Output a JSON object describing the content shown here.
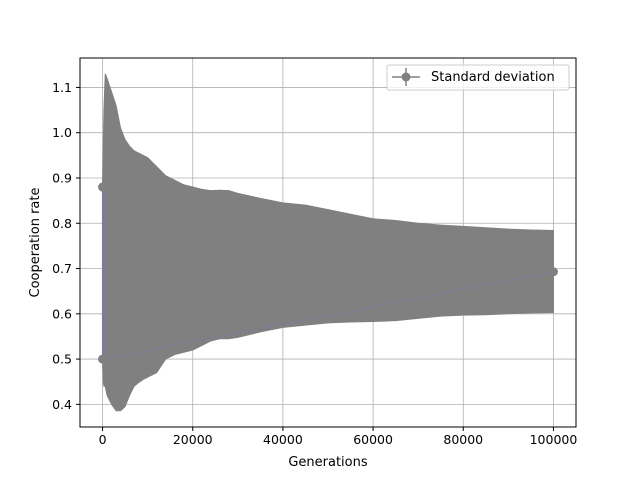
{
  "chart_data": {
    "type": "line",
    "title": "",
    "xlabel": "Generations",
    "ylabel": "Cooperation rate",
    "xlim": [
      -5000,
      105000
    ],
    "ylim": [
      0.35,
      1.165
    ],
    "xticks": [
      0,
      20000,
      40000,
      60000,
      80000,
      100000
    ],
    "xtick_labels": [
      "0",
      "20000",
      "40000",
      "60000",
      "80000",
      "100000"
    ],
    "yticks": [
      0.4,
      0.5,
      0.6,
      0.7,
      0.8,
      0.9,
      1.0,
      1.1
    ],
    "ytick_labels": [
      "0.4",
      "0.5",
      "0.6",
      "0.7",
      "0.8",
      "0.9",
      "1.0",
      "1.1"
    ],
    "grid": true,
    "legend": {
      "position": "top-right",
      "entries": [
        "Standard deviation"
      ]
    },
    "colors": {
      "errorbar": "#808080",
      "mean_line": "#7777aa",
      "grid": "#b0b0b0"
    },
    "series": [
      {
        "name": "Standard deviation",
        "x": [
          0,
          100000
        ],
        "y": [
          0.5,
          0.693
        ],
        "y_upper_label_point": 0.88
      }
    ],
    "error_band": {
      "x": [
        0,
        150,
        300,
        600,
        1000,
        2000,
        3000,
        4000,
        5000,
        6000,
        7000,
        8000,
        9000,
        10000,
        12000,
        14000,
        16000,
        18000,
        20000,
        22000,
        24000,
        26000,
        28000,
        30000,
        35000,
        40000,
        45000,
        50000,
        55000,
        60000,
        65000,
        70000,
        75000,
        80000,
        85000,
        90000,
        95000,
        100000
      ],
      "upper": [
        0.88,
        0.96,
        1.05,
        1.13,
        1.12,
        1.09,
        1.06,
        1.01,
        0.985,
        0.97,
        0.96,
        0.955,
        0.95,
        0.945,
        0.925,
        0.905,
        0.895,
        0.885,
        0.88,
        0.875,
        0.872,
        0.873,
        0.872,
        0.866,
        0.855,
        0.845,
        0.84,
        0.83,
        0.82,
        0.81,
        0.806,
        0.8,
        0.796,
        0.793,
        0.79,
        0.787,
        0.785,
        0.784
      ],
      "lower": [
        0.5,
        0.45,
        0.44,
        0.44,
        0.42,
        0.4,
        0.386,
        0.386,
        0.395,
        0.42,
        0.44,
        0.448,
        0.455,
        0.46,
        0.47,
        0.5,
        0.51,
        0.515,
        0.52,
        0.53,
        0.54,
        0.545,
        0.545,
        0.548,
        0.56,
        0.57,
        0.575,
        0.58,
        0.582,
        0.583,
        0.585,
        0.59,
        0.595,
        0.597,
        0.598,
        0.6,
        0.602,
        0.603
      ]
    }
  }
}
